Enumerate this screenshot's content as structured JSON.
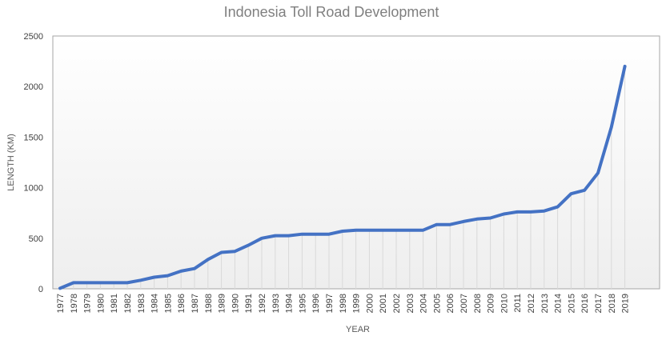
{
  "chart_data": {
    "type": "line",
    "title": "Indonesia Toll Road Development",
    "xlabel": "YEAR",
    "ylabel": "LENGTH (KM)",
    "ylim": [
      0,
      2500
    ],
    "yticks": [
      0,
      500,
      1000,
      1500,
      2000,
      2500
    ],
    "grid": false,
    "categories": [
      "1977",
      "1978",
      "1979",
      "1980",
      "1981",
      "1982",
      "1983",
      "1984",
      "1985",
      "1986",
      "1987",
      "1988",
      "1989",
      "1990",
      "1991",
      "1992",
      "1993",
      "1994",
      "1995",
      "1996",
      "1997",
      "1998",
      "1999",
      "2000",
      "2001",
      "2002",
      "2003",
      "2004",
      "2005",
      "2006",
      "2007",
      "2008",
      "2009",
      "2010",
      "2011",
      "2012",
      "2013",
      "2014",
      "2015",
      "2016",
      "2017",
      "2018",
      "2019"
    ],
    "series": [
      {
        "values": [
          5,
          60,
          60,
          60,
          60,
          60,
          85,
          115,
          130,
          175,
          200,
          290,
          360,
          370,
          430,
          500,
          525,
          525,
          540,
          540,
          540,
          570,
          580,
          580,
          580,
          580,
          580,
          580,
          635,
          635,
          665,
          690,
          700,
          740,
          760,
          760,
          770,
          810,
          940,
          975,
          1145,
          1600,
          2200
        ]
      }
    ],
    "colors": {
      "line": "#4472c4",
      "plot_background": "#f2f2f2",
      "drop_lines": "#d9d9d9",
      "border": "#a6a6a6"
    }
  }
}
